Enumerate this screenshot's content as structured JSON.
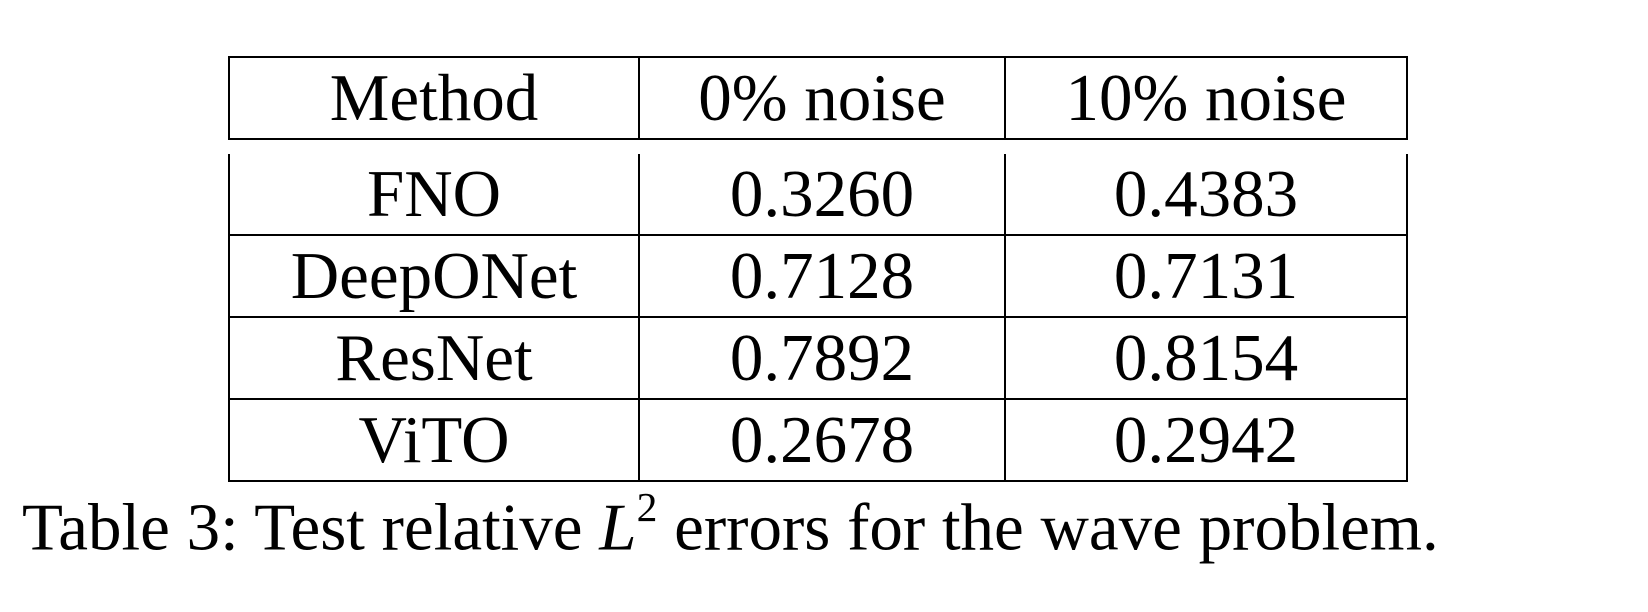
{
  "table": {
    "headers": [
      "Method",
      "0% noise",
      "10% noise"
    ],
    "rows": [
      {
        "method": "FNO",
        "noise_0": "0.3260",
        "noise_10": "0.4383"
      },
      {
        "method": "DeepONet",
        "noise_0": "0.7128",
        "noise_10": "0.7131"
      },
      {
        "method": "ResNet",
        "noise_0": "0.7892",
        "noise_10": "0.8154"
      },
      {
        "method": "ViTO",
        "noise_0": "0.2678",
        "noise_10": "0.2942"
      }
    ],
    "bold_row": "ViTO"
  },
  "caption": {
    "prefix": "Table 3: Test relative ",
    "symbol": "L",
    "superscript": "2",
    "suffix": " errors for the wave problem."
  }
}
